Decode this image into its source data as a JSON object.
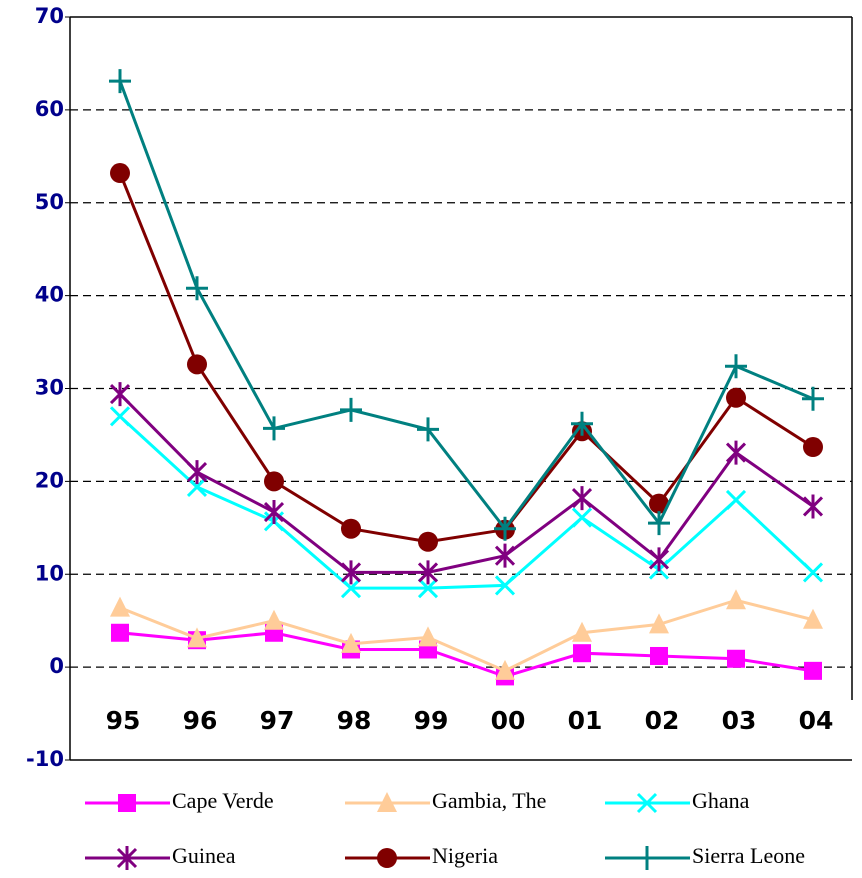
{
  "chart_data": {
    "type": "line",
    "categories": [
      "95",
      "96",
      "97",
      "98",
      "99",
      "00",
      "01",
      "02",
      "03",
      "04"
    ],
    "ylim": [
      -10,
      70
    ],
    "yticks": [
      -10,
      0,
      10,
      20,
      30,
      40,
      50,
      60,
      70
    ],
    "grid": true,
    "legend": "bottom",
    "series": [
      {
        "name": "Cape Verde",
        "color": "#ff00ff",
        "marker": "square",
        "values": [
          3.7,
          2.9,
          3.7,
          1.9,
          1.9,
          -1.0,
          1.5,
          1.2,
          0.9,
          -0.4
        ]
      },
      {
        "name": "Gambia, The",
        "color": "#ffcc99",
        "marker": "triangle",
        "values": [
          6.4,
          3.1,
          5.0,
          2.5,
          3.2,
          -0.4,
          3.7,
          4.6,
          7.2,
          5.1
        ]
      },
      {
        "name": "Ghana",
        "color": "#00ffff",
        "marker": "x",
        "values": [
          27.0,
          19.4,
          15.7,
          8.5,
          8.5,
          8.8,
          16.1,
          10.5,
          18.0,
          10.2
        ]
      },
      {
        "name": "Guinea",
        "color": "#800080",
        "marker": "star",
        "values": [
          29.4,
          21.0,
          16.7,
          10.2,
          10.2,
          12.0,
          18.2,
          11.6,
          23.1,
          17.3
        ]
      },
      {
        "name": "Nigeria",
        "color": "#800000",
        "marker": "circle",
        "values": [
          53.2,
          32.6,
          20.0,
          14.9,
          13.5,
          14.8,
          25.4,
          17.6,
          29.0,
          23.7
        ]
      },
      {
        "name": "Sierra Leone",
        "color": "#008080",
        "marker": "plus",
        "values": [
          63.1,
          40.8,
          25.7,
          27.7,
          25.6,
          14.9,
          26.2,
          15.5,
          32.4,
          28.9
        ]
      }
    ]
  }
}
